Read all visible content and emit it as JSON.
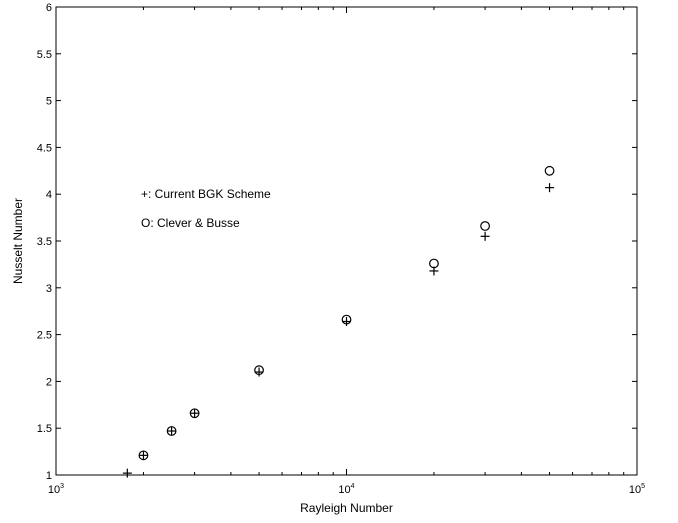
{
  "chart_data": {
    "type": "scatter",
    "xlabel": "Rayleigh Number",
    "ylabel": "Nusselt Number",
    "xscale": "log",
    "xlim": [
      1000,
      100000
    ],
    "ylim": [
      1,
      6
    ],
    "x_ticks": [
      {
        "value": 1000,
        "base": "10",
        "exp": "3"
      },
      {
        "value": 10000,
        "base": "10",
        "exp": "4"
      },
      {
        "value": 100000,
        "base": "10",
        "exp": "5"
      }
    ],
    "y_ticks": [
      {
        "value": 1,
        "label": "1"
      },
      {
        "value": 1.5,
        "label": "1.5"
      },
      {
        "value": 2,
        "label": "2"
      },
      {
        "value": 2.5,
        "label": "2.5"
      },
      {
        "value": 3,
        "label": "3"
      },
      {
        "value": 3.5,
        "label": "3.5"
      },
      {
        "value": 4,
        "label": "4"
      },
      {
        "value": 4.5,
        "label": "4.5"
      },
      {
        "value": 5,
        "label": "5"
      },
      {
        "value": 5.5,
        "label": "5.5"
      },
      {
        "value": 6,
        "label": "6"
      }
    ],
    "grid": false,
    "legend_position": "left",
    "series": [
      {
        "name": "Current BGK Scheme",
        "legend_label": "+: Current BGK Scheme",
        "marker": "plus",
        "color": "#000000",
        "points": [
          {
            "x": 1760,
            "y": 1.02
          },
          {
            "x": 2000,
            "y": 1.21
          },
          {
            "x": 2500,
            "y": 1.47
          },
          {
            "x": 3000,
            "y": 1.66
          },
          {
            "x": 5000,
            "y": 2.1
          },
          {
            "x": 10000,
            "y": 2.64
          },
          {
            "x": 20000,
            "y": 3.18
          },
          {
            "x": 30000,
            "y": 3.55
          },
          {
            "x": 50000,
            "y": 4.07
          }
        ]
      },
      {
        "name": "Clever & Busse",
        "legend_label": "O: Clever & Busse",
        "marker": "circle",
        "color": "#000000",
        "points": [
          {
            "x": 2000,
            "y": 1.21
          },
          {
            "x": 2500,
            "y": 1.47
          },
          {
            "x": 3000,
            "y": 1.66
          },
          {
            "x": 5000,
            "y": 2.12
          },
          {
            "x": 10000,
            "y": 2.66
          },
          {
            "x": 20000,
            "y": 3.26
          },
          {
            "x": 30000,
            "y": 3.66
          },
          {
            "x": 50000,
            "y": 4.25
          }
        ]
      }
    ]
  }
}
